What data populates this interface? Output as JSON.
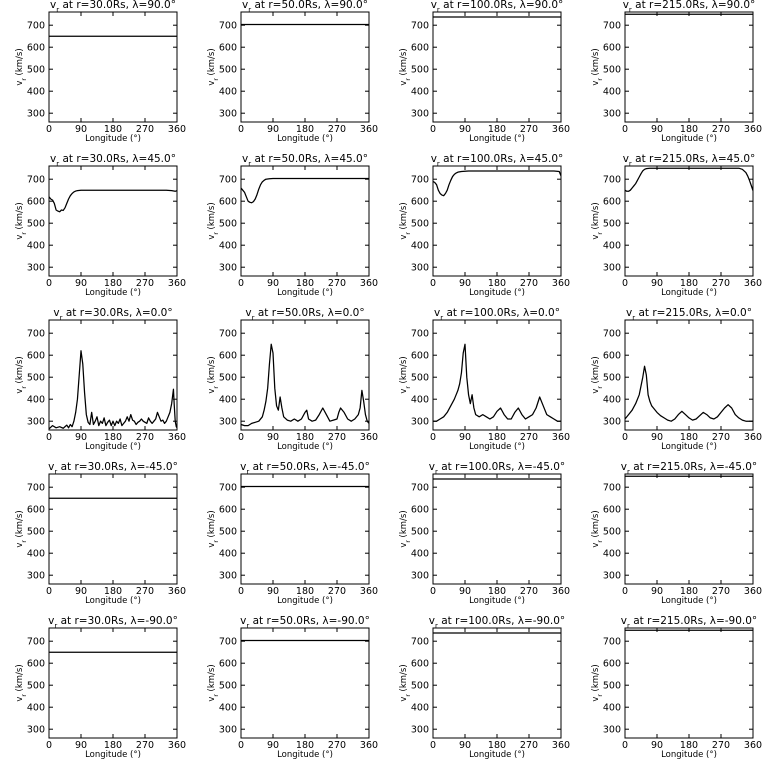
{
  "chart_data": {
    "type": "line",
    "layout": "5 rows x 4 columns of small multiples",
    "shared": {
      "xlabel": "Longitude (°)",
      "ylabel": "v_r (km/s)",
      "xlim": [
        0,
        360
      ],
      "ylim": [
        260,
        760
      ],
      "xticks": [
        "0",
        "90",
        "180",
        "270",
        "360"
      ],
      "yticks": [
        "300",
        "400",
        "500",
        "600",
        "700"
      ],
      "line_color": "#000000",
      "background": "#ffffff",
      "grid": false,
      "legend": "none"
    },
    "panels": [
      {
        "title": "v_r at r=30.0Rs, λ=90.0°",
        "x": [
          0,
          360
        ],
        "y": [
          650,
          650
        ]
      },
      {
        "title": "v_r at r=50.0Rs, λ=90.0°",
        "x": [
          0,
          360
        ],
        "y": [
          703,
          703
        ]
      },
      {
        "title": "v_r at r=100.0Rs, λ=90.0°",
        "x": [
          0,
          360
        ],
        "y": [
          737,
          737
        ]
      },
      {
        "title": "v_r at r=215.0Rs, λ=90.0°",
        "x": [
          0,
          360
        ],
        "y": [
          750,
          750
        ]
      },
      {
        "title": "v_r at r=30.0Rs, λ=45.0°",
        "x": [
          0,
          5,
          10,
          15,
          20,
          25,
          30,
          35,
          40,
          45,
          50,
          55,
          60,
          65,
          70,
          75,
          80,
          90,
          100,
          180,
          270,
          330,
          345,
          355,
          360
        ],
        "y": [
          620,
          610,
          605,
          590,
          560,
          555,
          552,
          560,
          558,
          570,
          590,
          610,
          625,
          635,
          642,
          646,
          648,
          650,
          650,
          650,
          650,
          650,
          648,
          645,
          648
        ]
      },
      {
        "title": "v_r at r=50.0Rs, λ=45.0°",
        "x": [
          0,
          5,
          10,
          15,
          20,
          25,
          30,
          35,
          40,
          45,
          50,
          55,
          60,
          65,
          70,
          80,
          90,
          180,
          270,
          360
        ],
        "y": [
          660,
          650,
          640,
          620,
          600,
          595,
          593,
          598,
          610,
          630,
          655,
          675,
          688,
          695,
          700,
          702,
          703,
          703,
          703,
          703
        ]
      },
      {
        "title": "v_r at r=100.0Rs, λ=45.0°",
        "x": [
          0,
          5,
          10,
          15,
          20,
          25,
          30,
          35,
          40,
          45,
          50,
          55,
          60,
          65,
          70,
          80,
          90,
          100,
          180,
          270,
          340,
          355,
          360
        ],
        "y": [
          690,
          685,
          675,
          650,
          635,
          628,
          625,
          635,
          650,
          675,
          695,
          712,
          722,
          728,
          732,
          735,
          736,
          737,
          737,
          737,
          737,
          735,
          715
        ]
      },
      {
        "title": "v_r at r=215.0Rs, λ=45.0°",
        "x": [
          0,
          5,
          10,
          15,
          20,
          25,
          30,
          35,
          40,
          45,
          50,
          55,
          60,
          70,
          80,
          90,
          180,
          270,
          320,
          330,
          340,
          345,
          350,
          355,
          360
        ],
        "y": [
          650,
          645,
          645,
          650,
          660,
          670,
          680,
          695,
          710,
          725,
          738,
          745,
          748,
          750,
          750,
          750,
          750,
          750,
          750,
          745,
          730,
          715,
          695,
          672,
          648
        ]
      },
      {
        "title": "v_r at r=30.0Rs, λ=0.0°",
        "x": [
          0,
          10,
          20,
          30,
          40,
          50,
          55,
          60,
          65,
          70,
          75,
          80,
          85,
          90,
          95,
          100,
          105,
          110,
          115,
          120,
          125,
          130,
          135,
          140,
          145,
          150,
          155,
          160,
          165,
          170,
          175,
          180,
          185,
          190,
          195,
          200,
          205,
          210,
          215,
          220,
          225,
          230,
          235,
          240,
          245,
          250,
          255,
          260,
          265,
          270,
          275,
          280,
          285,
          290,
          295,
          300,
          305,
          310,
          315,
          320,
          325,
          330,
          335,
          340,
          345,
          350,
          352,
          355,
          358,
          360
        ],
        "y": [
          265,
          280,
          270,
          275,
          268,
          282,
          270,
          285,
          275,
          300,
          340,
          400,
          510,
          620,
          560,
          430,
          330,
          295,
          285,
          340,
          285,
          300,
          320,
          280,
          300,
          290,
          315,
          280,
          295,
          305,
          280,
          300,
          280,
          300,
          290,
          310,
          280,
          290,
          300,
          320,
          300,
          330,
          305,
          300,
          285,
          295,
          300,
          310,
          300,
          295,
          290,
          315,
          300,
          290,
          300,
          310,
          340,
          320,
          300,
          305,
          290,
          300,
          320,
          340,
          380,
          445,
          380,
          300,
          275,
          270
        ]
      },
      {
        "title": "v_r at r=50.0Rs, λ=0.0°",
        "x": [
          0,
          10,
          20,
          30,
          40,
          50,
          60,
          65,
          70,
          75,
          80,
          85,
          90,
          95,
          100,
          105,
          110,
          115,
          120,
          130,
          140,
          150,
          160,
          170,
          180,
          185,
          190,
          200,
          210,
          220,
          230,
          240,
          250,
          260,
          270,
          275,
          280,
          290,
          300,
          310,
          320,
          330,
          335,
          340,
          345,
          350,
          355,
          360
        ],
        "y": [
          285,
          280,
          280,
          290,
          295,
          300,
          320,
          350,
          390,
          450,
          560,
          650,
          610,
          450,
          370,
          350,
          410,
          360,
          320,
          305,
          300,
          310,
          300,
          310,
          340,
          350,
          310,
          300,
          305,
          330,
          360,
          330,
          300,
          305,
          310,
          340,
          360,
          340,
          310,
          300,
          310,
          330,
          360,
          440,
          390,
          330,
          300,
          290
        ]
      },
      {
        "title": "v_r at r=100.0Rs, λ=0.0°",
        "x": [
          0,
          10,
          20,
          30,
          40,
          50,
          60,
          65,
          70,
          75,
          80,
          85,
          90,
          95,
          100,
          105,
          110,
          115,
          120,
          130,
          140,
          150,
          160,
          170,
          180,
          190,
          200,
          210,
          220,
          230,
          240,
          250,
          260,
          270,
          280,
          290,
          300,
          310,
          320,
          330,
          340,
          350,
          360
        ],
        "y": [
          300,
          300,
          310,
          320,
          340,
          370,
          400,
          420,
          440,
          470,
          520,
          610,
          650,
          500,
          420,
          380,
          420,
          360,
          330,
          320,
          330,
          320,
          310,
          320,
          345,
          360,
          330,
          310,
          310,
          340,
          360,
          330,
          310,
          320,
          330,
          360,
          410,
          370,
          330,
          320,
          310,
          300,
          300
        ]
      },
      {
        "title": "v_r at r=215.0Rs, λ=0.0°",
        "x": [
          0,
          10,
          20,
          30,
          40,
          45,
          50,
          55,
          60,
          65,
          70,
          75,
          80,
          90,
          100,
          110,
          120,
          130,
          140,
          150,
          160,
          170,
          180,
          190,
          200,
          210,
          220,
          230,
          240,
          250,
          260,
          270,
          280,
          290,
          300,
          310,
          320,
          330,
          340,
          350,
          360
        ],
        "y": [
          310,
          330,
          350,
          380,
          420,
          460,
          500,
          550,
          510,
          420,
          390,
          370,
          360,
          340,
          325,
          315,
          305,
          300,
          310,
          330,
          345,
          330,
          315,
          305,
          310,
          325,
          340,
          330,
          315,
          310,
          320,
          340,
          360,
          375,
          360,
          330,
          315,
          305,
          300,
          300,
          300
        ]
      },
      {
        "title": "v_r at r=30.0Rs, λ=-45.0°",
        "x": [
          0,
          360
        ],
        "y": [
          650,
          650
        ]
      },
      {
        "title": "v_r at r=50.0Rs, λ=-45.0°",
        "x": [
          0,
          360
        ],
        "y": [
          703,
          703
        ]
      },
      {
        "title": "v_r at r=100.0Rs, λ=-45.0°",
        "x": [
          0,
          360
        ],
        "y": [
          737,
          737
        ]
      },
      {
        "title": "v_r at r=215.0Rs, λ=-45.0°",
        "x": [
          0,
          360
        ],
        "y": [
          750,
          750
        ]
      },
      {
        "title": "v_r at r=30.0Rs, λ=-90.0°",
        "x": [
          0,
          360
        ],
        "y": [
          650,
          650
        ]
      },
      {
        "title": "v_r at r=50.0Rs, λ=-90.0°",
        "x": [
          0,
          360
        ],
        "y": [
          703,
          703
        ]
      },
      {
        "title": "v_r at r=100.0Rs, λ=-90.0°",
        "x": [
          0,
          360
        ],
        "y": [
          737,
          737
        ]
      },
      {
        "title": "v_r at r=215.0Rs, λ=-90.0°",
        "x": [
          0,
          360
        ],
        "y": [
          750,
          750
        ]
      }
    ]
  }
}
